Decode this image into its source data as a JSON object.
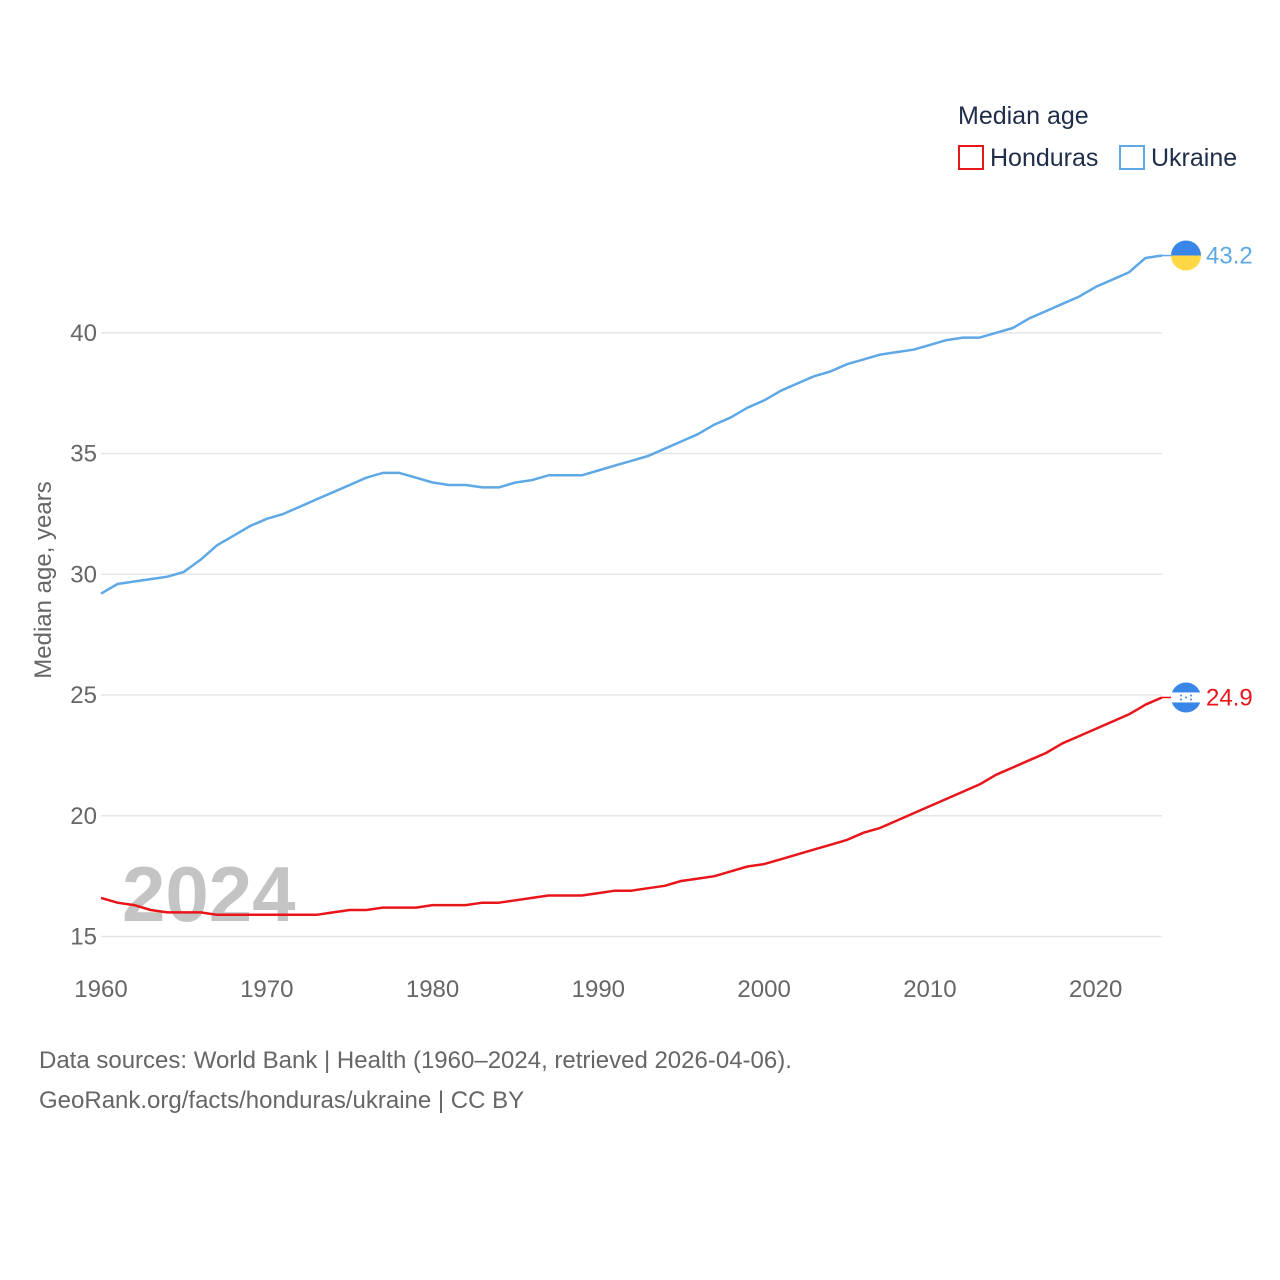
{
  "chart_data": {
    "type": "line",
    "legend_title": "Median age",
    "ylabel": "Median age, years",
    "xlabel": "",
    "ylim": [
      13.2,
      45.5
    ],
    "xlim": [
      1960,
      2024
    ],
    "yticks": [
      15,
      20,
      25,
      30,
      35,
      40
    ],
    "xticks": [
      1960,
      1970,
      1980,
      1990,
      2000,
      2010,
      2020
    ],
    "year_label": "2024",
    "legend_position": "top-right",
    "series": [
      {
        "name": "Honduras",
        "color": "#e8161b",
        "end_label": "24.9",
        "x": [
          1960,
          1961,
          1962,
          1963,
          1964,
          1965,
          1966,
          1967,
          1968,
          1969,
          1970,
          1971,
          1972,
          1973,
          1974,
          1975,
          1976,
          1977,
          1978,
          1979,
          1980,
          1981,
          1982,
          1983,
          1984,
          1985,
          1986,
          1987,
          1988,
          1989,
          1990,
          1991,
          1992,
          1993,
          1994,
          1995,
          1996,
          1997,
          1998,
          1999,
          2000,
          2001,
          2002,
          2003,
          2004,
          2005,
          2006,
          2007,
          2008,
          2009,
          2010,
          2011,
          2012,
          2013,
          2014,
          2015,
          2016,
          2017,
          2018,
          2019,
          2020,
          2021,
          2022,
          2023,
          2024
        ],
        "values": [
          16.6,
          16.4,
          16.3,
          16.1,
          16.0,
          16.0,
          16.0,
          15.9,
          15.9,
          15.9,
          15.9,
          15.9,
          15.9,
          15.9,
          16.0,
          16.1,
          16.1,
          16.2,
          16.2,
          16.2,
          16.3,
          16.3,
          16.3,
          16.4,
          16.4,
          16.5,
          16.6,
          16.7,
          16.7,
          16.7,
          16.8,
          16.9,
          16.9,
          17.0,
          17.1,
          17.3,
          17.4,
          17.5,
          17.7,
          17.9,
          18.0,
          18.2,
          18.4,
          18.6,
          18.8,
          19.0,
          19.3,
          19.5,
          19.8,
          20.1,
          20.4,
          20.7,
          21.0,
          21.3,
          21.7,
          22.0,
          22.3,
          22.6,
          23.0,
          23.3,
          23.6,
          23.9,
          24.2,
          24.6,
          24.9
        ]
      },
      {
        "name": "Ukraine",
        "color": "#5ea8e6",
        "end_label": "43.2",
        "x": [
          1960,
          1961,
          1962,
          1963,
          1964,
          1965,
          1966,
          1967,
          1968,
          1969,
          1970,
          1971,
          1972,
          1973,
          1974,
          1975,
          1976,
          1977,
          1978,
          1979,
          1980,
          1981,
          1982,
          1983,
          1984,
          1985,
          1986,
          1987,
          1988,
          1989,
          1990,
          1991,
          1992,
          1993,
          1994,
          1995,
          1996,
          1997,
          1998,
          1999,
          2000,
          2001,
          2002,
          2003,
          2004,
          2005,
          2006,
          2007,
          2008,
          2009,
          2010,
          2011,
          2012,
          2013,
          2014,
          2015,
          2016,
          2017,
          2018,
          2019,
          2020,
          2021,
          2022,
          2023,
          2024
        ],
        "values": [
          29.2,
          29.6,
          29.7,
          29.8,
          29.9,
          30.1,
          30.6,
          31.2,
          31.6,
          32.0,
          32.3,
          32.5,
          32.8,
          33.1,
          33.4,
          33.7,
          34.0,
          34.2,
          34.2,
          34.0,
          33.8,
          33.7,
          33.7,
          33.6,
          33.6,
          33.8,
          33.9,
          34.1,
          34.1,
          34.1,
          34.3,
          34.5,
          34.7,
          34.9,
          35.2,
          35.5,
          35.8,
          36.2,
          36.5,
          36.9,
          37.2,
          37.6,
          37.9,
          38.2,
          38.4,
          38.7,
          38.9,
          39.1,
          39.2,
          39.3,
          39.5,
          39.7,
          39.8,
          39.8,
          40.0,
          40.2,
          40.6,
          40.9,
          41.2,
          41.5,
          41.9,
          42.2,
          42.5,
          43.1,
          43.2
        ]
      }
    ]
  },
  "source": {
    "line1": "Data sources: World Bank | Health (1960–2024, retrieved 2026-04-06).",
    "line2": "GeoRank.org/facts/honduras/ukraine | CC BY"
  },
  "icons": {
    "honduras": "honduras-flag-icon",
    "ukraine": "ukraine-flag-icon"
  }
}
